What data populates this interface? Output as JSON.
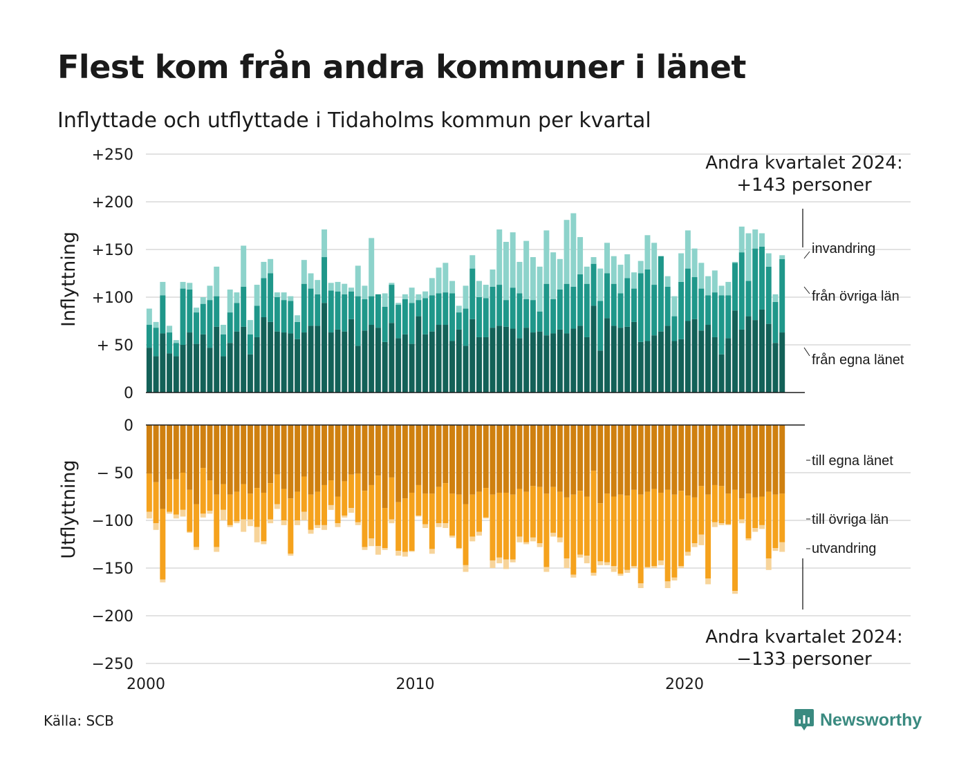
{
  "title": "Flest kom från andra kommuner i länet",
  "subtitle": "Inflyttade och utflyttade i Tidaholms kommun per kvartal",
  "source": "Källa: SCB",
  "brand": "Newsworthy",
  "colors": {
    "inflow": [
      "#136158",
      "#1f978a",
      "#8dd3cb"
    ],
    "outflow": [
      "#cf8010",
      "#f5a21d",
      "#f7d49a"
    ],
    "brand": "#3a8a80"
  },
  "chart_data": [
    {
      "type": "bar",
      "stacked": true,
      "panel": "Inflyttning",
      "ylabel": "Inflyttning",
      "ylim": [
        0,
        250
      ],
      "yticks": [
        "0",
        "+ 50",
        "+100",
        "+150",
        "+200",
        "+250"
      ],
      "ytick_values": [
        0,
        50,
        100,
        150,
        200,
        250
      ],
      "x_start": "2000 Q1",
      "x_end": "2024 Q2",
      "series": [
        {
          "name": "från egna länet",
          "values": [
            47,
            38,
            62,
            41,
            38,
            50,
            63,
            51,
            61,
            47,
            69,
            38,
            52,
            64,
            69,
            40,
            58,
            79,
            74,
            64,
            63,
            62,
            56,
            63,
            70,
            70,
            94,
            63,
            66,
            64,
            77,
            49,
            65,
            71,
            68,
            53,
            73,
            57,
            61,
            51,
            80,
            61,
            64,
            71,
            71,
            54,
            66,
            49,
            77,
            58,
            58,
            68,
            70,
            69,
            67,
            57,
            68,
            63,
            64,
            60,
            62,
            66,
            62,
            67,
            70,
            58,
            91,
            44,
            78,
            70,
            68,
            69,
            74,
            53,
            54,
            60,
            64,
            70,
            54,
            56,
            75,
            77,
            65,
            71,
            58,
            40,
            57,
            86,
            66,
            80,
            76,
            87,
            72,
            52,
            63
          ]
        },
        {
          "name": "från övriga län",
          "values": [
            24,
            30,
            40,
            22,
            14,
            59,
            45,
            33,
            32,
            50,
            32,
            23,
            32,
            30,
            42,
            21,
            33,
            41,
            51,
            36,
            34,
            34,
            18,
            51,
            39,
            33,
            48,
            44,
            40,
            39,
            29,
            52,
            33,
            30,
            35,
            37,
            40,
            35,
            37,
            43,
            17,
            38,
            38,
            33,
            34,
            50,
            18,
            39,
            53,
            42,
            41,
            43,
            43,
            28,
            43,
            47,
            30,
            34,
            21,
            54,
            36,
            42,
            52,
            44,
            54,
            56,
            44,
            52,
            47,
            44,
            36,
            51,
            35,
            72,
            75,
            53,
            79,
            41,
            26,
            60,
            55,
            44,
            44,
            31,
            47,
            62,
            45,
            50,
            81,
            37,
            75,
            66,
            60,
            43,
            77
          ]
        },
        {
          "name": "invandring",
          "values": [
            17,
            6,
            14,
            7,
            3,
            7,
            7,
            5,
            7,
            15,
            31,
            10,
            24,
            11,
            43,
            15,
            22,
            17,
            15,
            5,
            8,
            5,
            7,
            25,
            16,
            15,
            29,
            8,
            10,
            11,
            4,
            32,
            14,
            61,
            0,
            14,
            2,
            2,
            5,
            16,
            6,
            7,
            18,
            27,
            31,
            13,
            7,
            24,
            14,
            17,
            14,
            18,
            58,
            61,
            58,
            33,
            61,
            45,
            47,
            56,
            49,
            32,
            67,
            77,
            39,
            18,
            7,
            34,
            32,
            29,
            30,
            25,
            17,
            13,
            36,
            44,
            0,
            11,
            21,
            30,
            40,
            30,
            27,
            20,
            23,
            10,
            14,
            1,
            27,
            50,
            20,
            14,
            14,
            8,
            4
          ]
        }
      ]
    },
    {
      "type": "bar",
      "stacked": true,
      "panel": "Utflyttning",
      "ylabel": "Utflyttning",
      "ylim": [
        -250,
        0
      ],
      "yticks": [
        "−250",
        "−200",
        "−150",
        "−100",
        "− 50",
        "0"
      ],
      "ytick_values": [
        -250,
        -200,
        -150,
        -100,
        -50,
        0
      ],
      "x_start": "2000 Q1",
      "x_end": "2024 Q2",
      "series": [
        {
          "name": "till egna länet",
          "values": [
            -51,
            -60,
            -88,
            -57,
            -57,
            -50,
            -68,
            -83,
            -45,
            -58,
            -73,
            -62,
            -73,
            -70,
            -62,
            -72,
            -66,
            -71,
            -61,
            -52,
            -67,
            -77,
            -70,
            -54,
            -73,
            -70,
            -63,
            -58,
            -75,
            -59,
            -52,
            -51,
            -69,
            -63,
            -53,
            -87,
            -55,
            -81,
            -77,
            -71,
            -63,
            -72,
            -72,
            -65,
            -61,
            -72,
            -73,
            -83,
            -73,
            -70,
            -66,
            -73,
            -71,
            -71,
            -73,
            -67,
            -70,
            -64,
            -65,
            -72,
            -65,
            -70,
            -76,
            -73,
            -69,
            -75,
            -48,
            -82,
            -72,
            -75,
            -73,
            -74,
            -68,
            -73,
            -70,
            -67,
            -71,
            -68,
            -73,
            -69,
            -74,
            -76,
            -64,
            -73,
            -63,
            -64,
            -72,
            -68,
            -77,
            -72,
            -76,
            -75,
            -70,
            -73,
            -72
          ]
        },
        {
          "name": "till övriga län",
          "values": [
            -40,
            -43,
            -74,
            -34,
            -37,
            -39,
            -44,
            -45,
            -48,
            -32,
            -55,
            -27,
            -32,
            -31,
            -37,
            -27,
            -41,
            -51,
            -38,
            -31,
            -33,
            -58,
            -30,
            -37,
            -37,
            -35,
            -42,
            -26,
            -28,
            -36,
            -35,
            -51,
            -59,
            -56,
            -74,
            -42,
            -44,
            -51,
            -56,
            -61,
            -32,
            -32,
            -58,
            -38,
            -42,
            -44,
            -56,
            -64,
            -44,
            -42,
            -31,
            -69,
            -68,
            -70,
            -68,
            -50,
            -53,
            -54,
            -59,
            -77,
            -48,
            -48,
            -64,
            -84,
            -67,
            -62,
            -107,
            -61,
            -72,
            -73,
            -83,
            -78,
            -80,
            -93,
            -79,
            -81,
            -71,
            -96,
            -87,
            -79,
            -59,
            -48,
            -51,
            -88,
            -39,
            -39,
            -32,
            -106,
            -22,
            -47,
            -32,
            -30,
            -70,
            -56,
            -51
          ]
        },
        {
          "name": "utvandring",
          "values": [
            -7,
            -7,
            -3,
            -2,
            -4,
            -7,
            -1,
            -3,
            -4,
            -3,
            -5,
            -11,
            -2,
            -2,
            -13,
            -7,
            -16,
            -3,
            -4,
            -5,
            -5,
            -2,
            -5,
            -9,
            -4,
            -3,
            -5,
            -5,
            -4,
            -2,
            -5,
            -3,
            -3,
            -8,
            -9,
            -2,
            -4,
            -5,
            -5,
            -1,
            -1,
            -4,
            -5,
            -4,
            -5,
            -2,
            -1,
            -7,
            -5,
            -4,
            -1,
            -8,
            -6,
            -10,
            -3,
            -6,
            -2,
            -4,
            -4,
            -5,
            -4,
            -5,
            -10,
            -3,
            -3,
            -8,
            -3,
            -4,
            -3,
            -6,
            -2,
            -3,
            -2,
            -5,
            -1,
            -2,
            -5,
            -7,
            -3,
            -2,
            -4,
            -4,
            -11,
            -6,
            -5,
            -2,
            -1,
            -3,
            -4,
            -2,
            -4,
            -4,
            -12,
            -3,
            -10
          ]
        }
      ]
    }
  ],
  "x_axis": {
    "ticks": [
      "2000",
      "2010",
      "2020"
    ]
  },
  "legend_top": [
    "invandring",
    "från övriga län",
    "från egna länet"
  ],
  "legend_bottom": [
    "till egna länet",
    "till övriga län",
    "utvandring"
  ],
  "annotations": {
    "top_line1": "Andra kvartalet 2024:",
    "top_line2": "+143 personer",
    "bottom_line1": "Andra kvartalet 2024:",
    "bottom_line2": "−133 personer"
  }
}
